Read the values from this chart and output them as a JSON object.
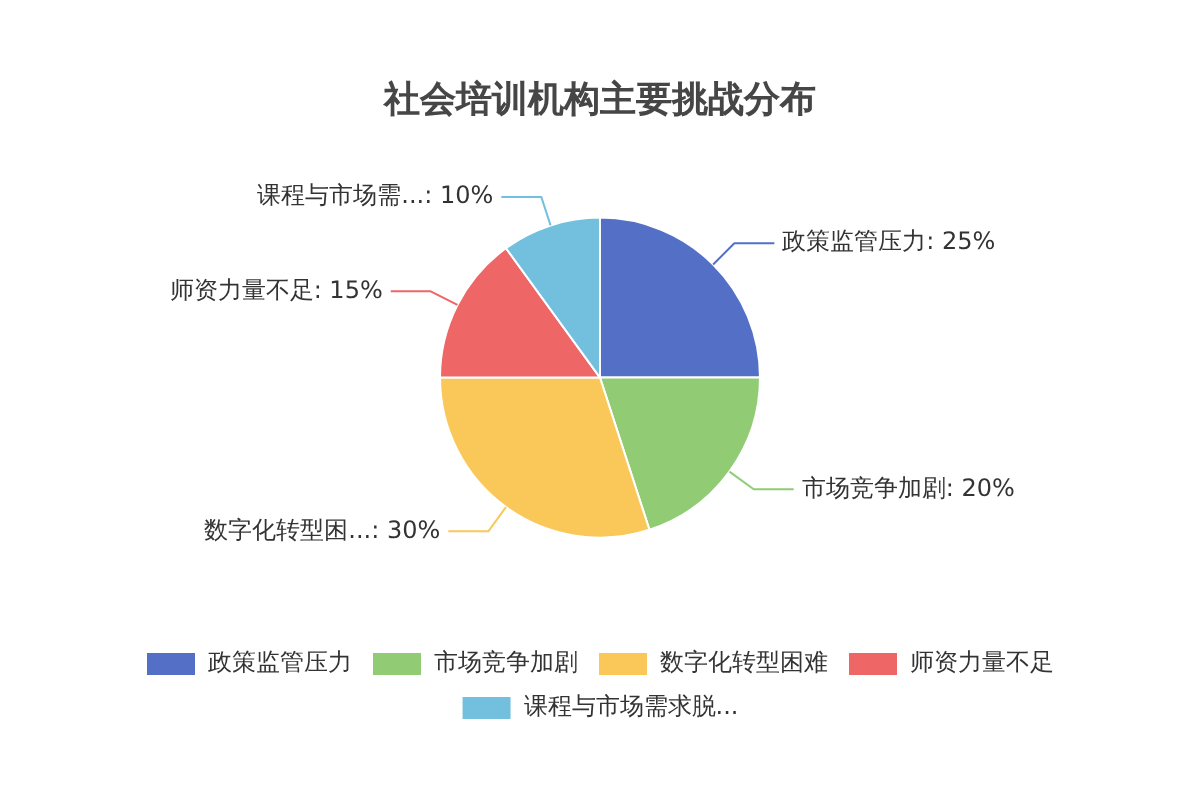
{
  "chart_data": {
    "type": "pie",
    "title": "社会培训机构主要挑战分布",
    "categories": [
      "政策监管压力",
      "市场竞争加剧",
      "数字化转型困难",
      "师资力量不足",
      "课程与市场需求脱..."
    ],
    "values": [
      25,
      20,
      30,
      15,
      10
    ],
    "colors": [
      "#5470c6",
      "#91cc75",
      "#fac858",
      "#ee6666",
      "#73c0de"
    ],
    "value_labels": [
      "政策监管压力: 25%",
      "市场竞争加剧: 20%",
      "数字化转型困...: 30%",
      "师资力量不足: 15%",
      "课程与市场需...: 10%"
    ],
    "legend": "bottom"
  }
}
